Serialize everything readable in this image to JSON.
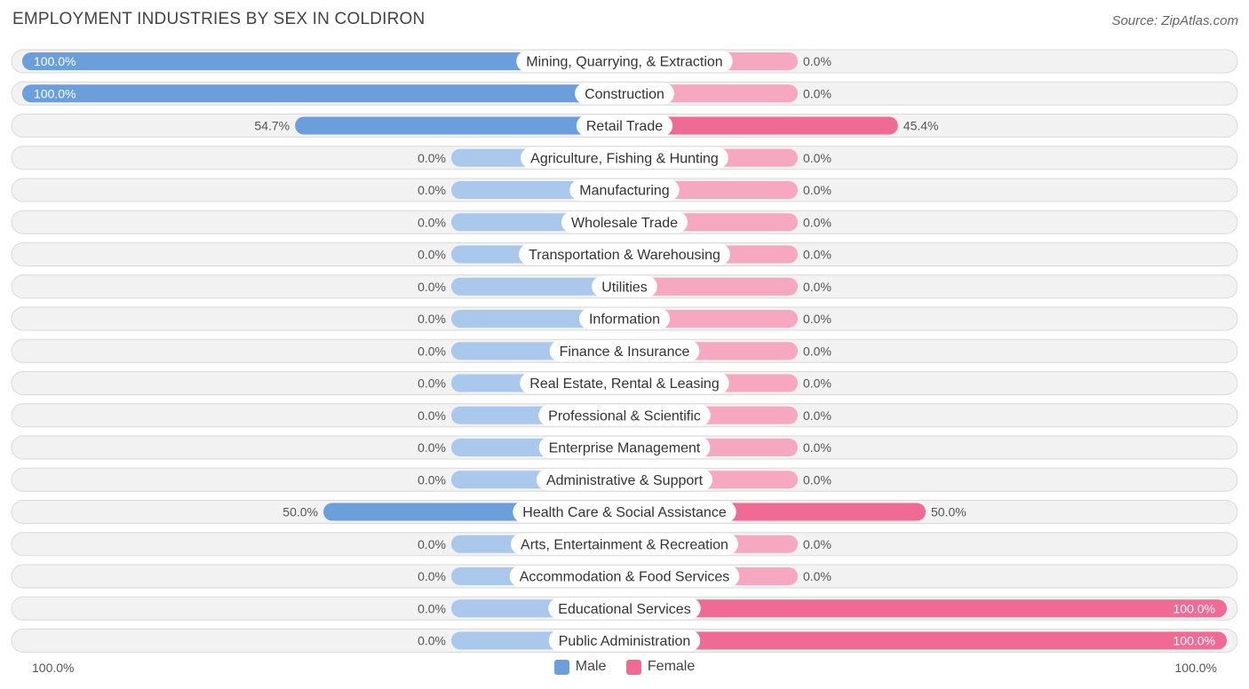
{
  "title": "EMPLOYMENT INDUSTRIES BY SEX IN COLDIRON",
  "source": "Source: ZipAtlas.com",
  "legend": {
    "male": "Male",
    "female": "Female"
  },
  "axis": {
    "left": "100.0%",
    "right": "100.0%"
  },
  "colors": {
    "male_strong": "#6a9fdc",
    "male_light": "#aac7ec",
    "female_strong": "#f06a96",
    "female_light": "#f6a8c1",
    "row_bg": "#f2f2f2",
    "row_border": "#d9d9d9"
  },
  "chart_data": {
    "type": "bar",
    "orientation": "diverging-horizontal",
    "categories": [
      "Mining, Quarrying, & Extraction",
      "Construction",
      "Retail Trade",
      "Agriculture, Fishing & Hunting",
      "Manufacturing",
      "Wholesale Trade",
      "Transportation & Warehousing",
      "Utilities",
      "Information",
      "Finance & Insurance",
      "Real Estate, Rental & Leasing",
      "Professional & Scientific",
      "Enterprise Management",
      "Administrative & Support",
      "Health Care & Social Assistance",
      "Arts, Entertainment & Recreation",
      "Accommodation & Food Services",
      "Educational Services",
      "Public Administration"
    ],
    "series": [
      {
        "name": "Male",
        "values": [
          100.0,
          100.0,
          54.7,
          0,
          0,
          0,
          0,
          0,
          0,
          0,
          0,
          0,
          0,
          0,
          50.0,
          0,
          0,
          0,
          0
        ],
        "labels": [
          "100.0%",
          "100.0%",
          "54.7%",
          "0.0%",
          "0.0%",
          "0.0%",
          "0.0%",
          "0.0%",
          "0.0%",
          "0.0%",
          "0.0%",
          "0.0%",
          "0.0%",
          "0.0%",
          "50.0%",
          "0.0%",
          "0.0%",
          "0.0%",
          "0.0%"
        ]
      },
      {
        "name": "Female",
        "values": [
          0,
          0,
          45.4,
          0,
          0,
          0,
          0,
          0,
          0,
          0,
          0,
          0,
          0,
          0,
          50.0,
          0,
          0,
          100.0,
          100.0
        ],
        "labels": [
          "0.0%",
          "0.0%",
          "45.4%",
          "0.0%",
          "0.0%",
          "0.0%",
          "0.0%",
          "0.0%",
          "0.0%",
          "0.0%",
          "0.0%",
          "0.0%",
          "0.0%",
          "0.0%",
          "50.0%",
          "0.0%",
          "0.0%",
          "100.0%",
          "100.0%"
        ]
      }
    ],
    "xlim": [
      -100,
      100
    ],
    "unit": "%"
  }
}
